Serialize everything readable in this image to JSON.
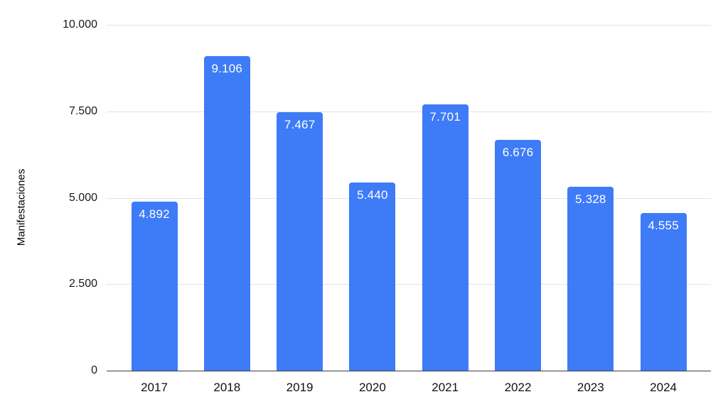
{
  "chart_data": {
    "type": "bar",
    "title": "",
    "xlabel": "",
    "ylabel": "Manifestaciones",
    "categories": [
      "2017",
      "2018",
      "2019",
      "2020",
      "2021",
      "2022",
      "2023",
      "2024"
    ],
    "values": [
      4892,
      9106,
      7467,
      5440,
      7701,
      6676,
      5328,
      4555
    ],
    "value_labels": [
      "4.892",
      "9.106",
      "7.467",
      "5.440",
      "7.701",
      "6.676",
      "5.328",
      "4.555"
    ],
    "ylim": [
      0,
      10000
    ],
    "y_ticks": [
      0,
      2500,
      5000,
      7500,
      10000
    ],
    "y_tick_labels": [
      "0",
      "2.500",
      "5.000",
      "7.500",
      "10.000"
    ],
    "grid": true,
    "legend": "none",
    "bar_color": "#3e7bf7",
    "bar_label_color": "#ffffff",
    "gridline_color": "#e3e3e3",
    "axis_line_color": "#3c3c3c",
    "tick_label_color": "#1a1a1a"
  }
}
